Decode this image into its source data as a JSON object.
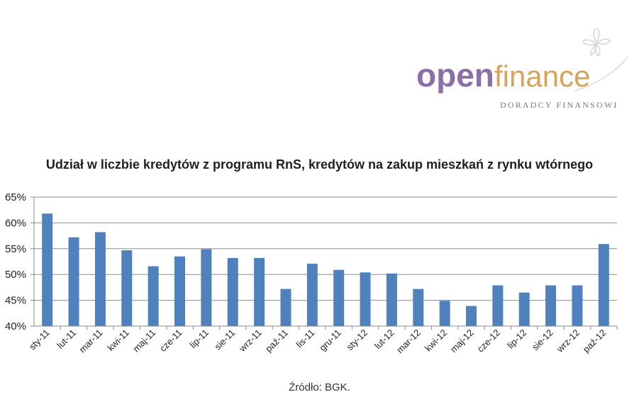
{
  "logo": {
    "brand_part1": "open",
    "brand_part2": "finance",
    "tagline": "DORADCY FINANSOWI"
  },
  "source_note": "Źródło: BGK.",
  "colors": {
    "bar": "#4f81bd",
    "logo_purple": "#8c6fa8",
    "logo_gold": "#d6a35a",
    "logo_gray": "#7a7a7a"
  },
  "chart_data": {
    "type": "bar",
    "title": "Udział w liczbie kredytów z programu RnS, kredytów na zakup mieszkań z rynku wtórnego",
    "categories": [
      "sty-11",
      "lut-11",
      "mar-11",
      "kwi-11",
      "maj-11",
      "cze-11",
      "lip-11",
      "sie-11",
      "wrz-11",
      "paź-11",
      "lis-11",
      "gru-11",
      "sty-12",
      "lut-12",
      "mar-12",
      "kwi-12",
      "maj-12",
      "cze-12",
      "lip-12",
      "sie-12",
      "wrz-12",
      "paź-12"
    ],
    "values": [
      61.8,
      57.2,
      58.2,
      54.7,
      51.6,
      53.5,
      54.9,
      53.2,
      53.2,
      47.2,
      52.1,
      50.9,
      50.4,
      50.2,
      47.2,
      44.9,
      43.9,
      47.9,
      46.5,
      47.9,
      47.9,
      55.9
    ],
    "ylim": [
      40,
      65
    ],
    "yticks": [
      40,
      45,
      50,
      55,
      60,
      65
    ],
    "ytick_suffix": "%",
    "grid": true,
    "xlabel": "",
    "ylabel": ""
  }
}
